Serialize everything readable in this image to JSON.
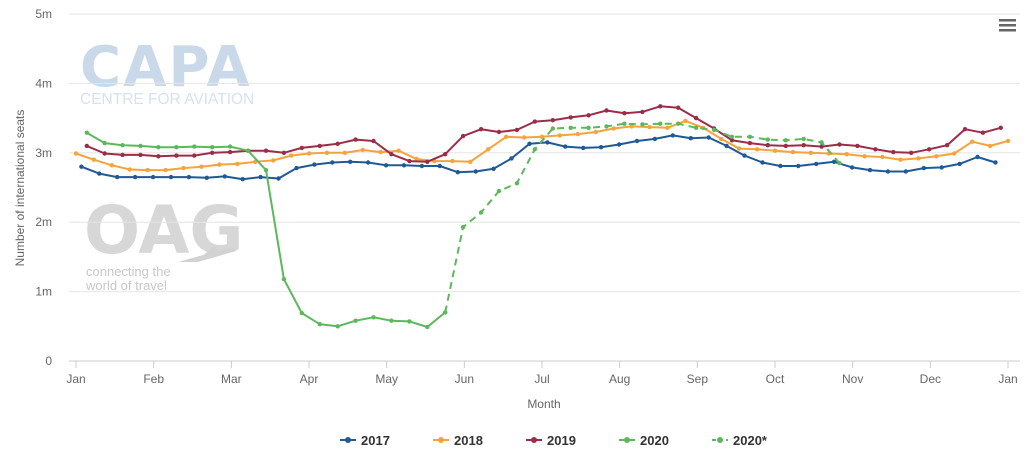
{
  "chart_data": {
    "type": "line",
    "title": "",
    "xlabel": "Month",
    "ylabel": "Number of international seats",
    "x_ticks": [
      "Jan",
      "Feb",
      "Mar",
      "Apr",
      "May",
      "Jun",
      "Jul",
      "Aug",
      "Sep",
      "Oct",
      "Nov",
      "Dec",
      "Jan"
    ],
    "y_ticks": [
      "0",
      "1m",
      "2m",
      "3m",
      "4m",
      "5m"
    ],
    "ylim": [
      0,
      5000000
    ],
    "grid": "horizontal",
    "legend_placement": "bottom-center",
    "x_unit": "weeks since start of year",
    "series": [
      {
        "name": "2017",
        "color": "#1f5a96",
        "dashed": false,
        "x": [
          0.3,
          1.3,
          2.3,
          3.3,
          4.3,
          5.3,
          6.3,
          7.3,
          8.3,
          9.3,
          10.3,
          11.3,
          12.3,
          13.3,
          14.3,
          15.3,
          16.3,
          17.3,
          18.3,
          19.3,
          20.3,
          21.3,
          22.3,
          23.3,
          24.3,
          25.3,
          26.3,
          27.3,
          28.3,
          29.3,
          30.3,
          31.3,
          32.3,
          33.3,
          34.3,
          35.3,
          36.3,
          37.3,
          38.3,
          39.3,
          40.3,
          41.3,
          42.3,
          43.3,
          44.3,
          45.3,
          46.3,
          47.3,
          48.3,
          49.3,
          50.3,
          51.3
        ],
        "y": [
          2800000,
          2700000,
          2650000,
          2650000,
          2650000,
          2650000,
          2650000,
          2640000,
          2660000,
          2620000,
          2650000,
          2630000,
          2780000,
          2830000,
          2860000,
          2870000,
          2860000,
          2820000,
          2820000,
          2810000,
          2810000,
          2720000,
          2730000,
          2770000,
          2920000,
          3130000,
          3150000,
          3090000,
          3070000,
          3080000,
          3120000,
          3170000,
          3200000,
          3250000,
          3210000,
          3220000,
          3100000,
          2960000,
          2860000,
          2810000,
          2810000,
          2840000,
          2870000,
          2790000,
          2750000,
          2730000,
          2730000,
          2780000,
          2790000,
          2840000,
          2940000,
          2860000
        ]
      },
      {
        "name": "2018",
        "color": "#f5a33c",
        "dashed": false,
        "x": [
          0,
          1,
          2,
          3,
          4,
          5,
          6,
          7,
          8,
          9,
          10,
          11,
          12,
          13,
          14,
          15,
          16,
          17,
          18,
          19,
          20,
          21,
          22,
          23,
          24,
          25,
          26,
          27,
          28,
          29,
          30,
          31,
          32,
          33,
          34,
          35,
          36,
          37,
          38,
          39,
          40,
          41,
          42,
          43,
          44,
          45,
          46,
          47,
          48,
          49,
          50,
          51,
          52
        ],
        "y": [
          2990000,
          2900000,
          2820000,
          2760000,
          2750000,
          2750000,
          2780000,
          2800000,
          2830000,
          2840000,
          2870000,
          2890000,
          2960000,
          2990000,
          3000000,
          3000000,
          3040000,
          3010000,
          3030000,
          2910000,
          2880000,
          2880000,
          2870000,
          3050000,
          3230000,
          3220000,
          3230000,
          3250000,
          3270000,
          3300000,
          3350000,
          3380000,
          3370000,
          3360000,
          3460000,
          3360000,
          3200000,
          3060000,
          3050000,
          3030000,
          3010000,
          3000000,
          2990000,
          2980000,
          2950000,
          2940000,
          2900000,
          2920000,
          2950000,
          2990000,
          3160000,
          3100000,
          3170000
        ]
      },
      {
        "name": "2019",
        "color": "#9b2d48",
        "dashed": false,
        "x": [
          0.6,
          1.6,
          2.6,
          3.6,
          4.6,
          5.6,
          6.6,
          7.6,
          8.6,
          9.6,
          10.6,
          11.6,
          12.6,
          13.6,
          14.6,
          15.6,
          16.6,
          17.6,
          18.6,
          19.6,
          20.6,
          21.6,
          22.6,
          23.6,
          24.6,
          25.6,
          26.6,
          27.6,
          28.6,
          29.6,
          30.6,
          31.6,
          32.6,
          33.6,
          34.6,
          35.6,
          36.6,
          37.6,
          38.6,
          39.6,
          40.6,
          41.6,
          42.6,
          43.6,
          44.6,
          45.6,
          46.6,
          47.6,
          48.6,
          49.6,
          50.6,
          51.6
        ],
        "y": [
          3100000,
          2990000,
          2970000,
          2970000,
          2950000,
          2960000,
          2960000,
          3000000,
          3010000,
          3030000,
          3030000,
          3000000,
          3070000,
          3100000,
          3130000,
          3190000,
          3170000,
          2980000,
          2880000,
          2870000,
          2980000,
          3240000,
          3340000,
          3300000,
          3330000,
          3450000,
          3470000,
          3510000,
          3540000,
          3610000,
          3570000,
          3590000,
          3670000,
          3650000,
          3500000,
          3350000,
          3180000,
          3140000,
          3110000,
          3100000,
          3110000,
          3090000,
          3120000,
          3100000,
          3050000,
          3010000,
          3000000,
          3050000,
          3110000,
          3340000,
          3290000,
          3360000
        ]
      },
      {
        "name": "2020",
        "color": "#5cb85c",
        "dashed": false,
        "x": [
          0.6,
          1.6,
          2.6,
          3.6,
          4.6,
          5.6,
          6.6,
          7.6,
          8.6,
          9.6,
          10.6,
          11.6,
          12.6,
          13.6,
          14.6,
          15.6,
          16.6,
          17.6,
          18.6,
          19.6,
          20.6
        ],
        "y": [
          3290000,
          3140000,
          3110000,
          3100000,
          3080000,
          3080000,
          3090000,
          3080000,
          3090000,
          3030000,
          2750000,
          1180000,
          690000,
          530000,
          500000,
          580000,
          630000,
          580000,
          570000,
          490000,
          700000
        ]
      },
      {
        "name": "2020*",
        "color": "#5cb85c",
        "dashed": true,
        "x": [
          20.6,
          21.6,
          22.6,
          23.6,
          24.6,
          25.6,
          26.6,
          27.6,
          28.6,
          29.6,
          30.6,
          31.6,
          32.6,
          33.6,
          34.6,
          35.6,
          36.6,
          37.6,
          38.6,
          39.6,
          40.6,
          41.6,
          42.6
        ],
        "y": [
          700000,
          1930000,
          2140000,
          2450000,
          2560000,
          3050000,
          3350000,
          3360000,
          3360000,
          3380000,
          3420000,
          3410000,
          3420000,
          3420000,
          3360000,
          3330000,
          3230000,
          3230000,
          3190000,
          3180000,
          3200000,
          3150000,
          2850000
        ]
      }
    ]
  }
}
